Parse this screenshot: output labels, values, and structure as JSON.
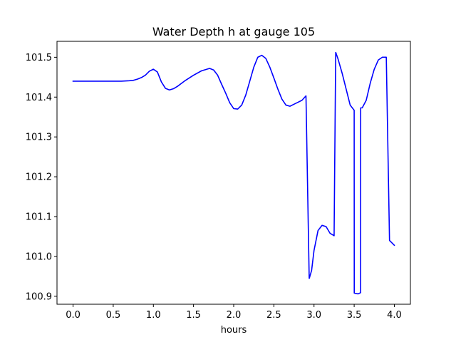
{
  "chart_data": {
    "type": "line",
    "title": "Water Depth h at gauge 105",
    "xlabel": "hours",
    "ylabel": "",
    "xlim": [
      -0.2,
      4.2
    ],
    "ylim": [
      100.88,
      101.54
    ],
    "xticks": [
      {
        "value": 0.0,
        "label": "0.0"
      },
      {
        "value": 0.5,
        "label": "0.5"
      },
      {
        "value": 1.0,
        "label": "1.0"
      },
      {
        "value": 1.5,
        "label": "1.5"
      },
      {
        "value": 2.0,
        "label": "2.0"
      },
      {
        "value": 2.5,
        "label": "2.5"
      },
      {
        "value": 3.0,
        "label": "3.0"
      },
      {
        "value": 3.5,
        "label": "3.5"
      },
      {
        "value": 4.0,
        "label": "4.0"
      }
    ],
    "yticks": [
      {
        "value": 100.9,
        "label": "100.9"
      },
      {
        "value": 101.0,
        "label": "101.0"
      },
      {
        "value": 101.1,
        "label": "101.1"
      },
      {
        "value": 101.2,
        "label": "101.2"
      },
      {
        "value": 101.3,
        "label": "101.3"
      },
      {
        "value": 101.4,
        "label": "101.4"
      },
      {
        "value": 101.5,
        "label": "101.5"
      }
    ],
    "grid": false,
    "series": [
      {
        "color": "#0000ff",
        "x": [
          0.0,
          0.2,
          0.4,
          0.6,
          0.7,
          0.75,
          0.8,
          0.85,
          0.9,
          0.95,
          1.0,
          1.05,
          1.1,
          1.15,
          1.2,
          1.25,
          1.3,
          1.4,
          1.5,
          1.6,
          1.7,
          1.75,
          1.8,
          1.85,
          1.9,
          1.95,
          2.0,
          2.05,
          2.1,
          2.15,
          2.2,
          2.25,
          2.3,
          2.35,
          2.4,
          2.45,
          2.5,
          2.55,
          2.6,
          2.65,
          2.7,
          2.75,
          2.8,
          2.85,
          2.9,
          2.94,
          2.941,
          2.97,
          3.0,
          3.05,
          3.1,
          3.15,
          3.2,
          3.25,
          3.27,
          3.271,
          3.3,
          3.35,
          3.4,
          3.45,
          3.5,
          3.501,
          3.52,
          3.55,
          3.58,
          3.581,
          3.6,
          3.65,
          3.7,
          3.75,
          3.8,
          3.85,
          3.9,
          3.94,
          3.941,
          4.0
        ],
        "y": [
          101.44,
          101.44,
          101.44,
          101.44,
          101.441,
          101.442,
          101.445,
          101.449,
          101.455,
          101.465,
          101.47,
          101.463,
          101.438,
          101.422,
          101.418,
          101.421,
          101.427,
          101.442,
          101.455,
          101.466,
          101.472,
          101.468,
          101.455,
          101.432,
          101.41,
          101.386,
          101.371,
          101.37,
          101.38,
          101.405,
          101.44,
          101.475,
          101.5,
          101.505,
          101.497,
          101.475,
          101.448,
          101.42,
          101.395,
          101.38,
          101.377,
          101.382,
          101.387,
          101.392,
          101.403,
          100.945,
          100.945,
          100.965,
          101.015,
          101.065,
          101.078,
          101.075,
          101.058,
          101.052,
          101.512,
          101.512,
          101.495,
          101.46,
          101.42,
          101.38,
          101.367,
          100.908,
          100.907,
          100.906,
          100.909,
          101.373,
          101.373,
          101.392,
          101.435,
          101.47,
          101.493,
          101.5,
          101.5,
          101.04,
          101.04,
          101.028
        ]
      }
    ]
  }
}
